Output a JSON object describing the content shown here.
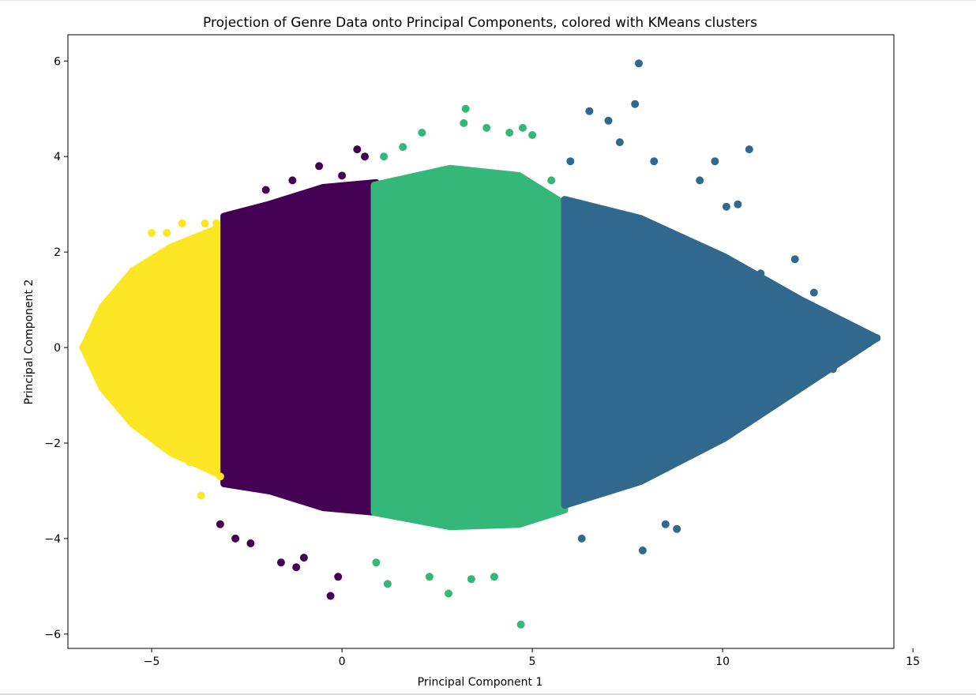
{
  "chart_data": {
    "type": "scatter",
    "title": "Projection of Genre Data onto Principal Components, colored with KMeans clusters",
    "xlabel": "Principal Component 1",
    "ylabel": "Principal Component 2",
    "xlim": [
      -7.2,
      14.5
    ],
    "ylim": [
      -6.3,
      6.55
    ],
    "x_ticks": [
      -5,
      0,
      5,
      10,
      15
    ],
    "x_tick_labels": [
      "−5",
      "0",
      "5",
      "10",
      "15"
    ],
    "y_ticks": [
      -6,
      -4,
      -2,
      0,
      2,
      4,
      6
    ],
    "y_tick_labels": [
      "−6",
      "−4",
      "−2",
      "0",
      "2",
      "4",
      "6"
    ],
    "grid": false,
    "legend": "none",
    "series": [
      {
        "cluster": 0,
        "color": "#fde725",
        "x_range": [
          -6.8,
          -3.1
        ],
        "y_range": [
          -3.1,
          2.6
        ],
        "points": [
          [
            -6.8,
            0.0
          ],
          [
            -6.4,
            0.6
          ],
          [
            -6.0,
            -0.9
          ],
          [
            -5.5,
            1.6
          ],
          [
            -5.2,
            -1.7
          ],
          [
            -5.0,
            2.4
          ],
          [
            -4.6,
            2.4
          ],
          [
            -4.5,
            -2.0
          ],
          [
            -4.2,
            2.6
          ],
          [
            -4.0,
            -2.4
          ],
          [
            -3.7,
            -3.1
          ],
          [
            -3.6,
            2.6
          ],
          [
            -3.3,
            2.6
          ],
          [
            -3.2,
            -2.7
          ]
        ]
      },
      {
        "cluster": 1,
        "color": "#440154",
        "x_range": [
          -3.1,
          0.9
        ],
        "y_range": [
          -5.2,
          4.15
        ],
        "points": [
          [
            -3.2,
            -3.7
          ],
          [
            -2.8,
            -4.0
          ],
          [
            -2.4,
            -4.1
          ],
          [
            -2.0,
            3.3
          ],
          [
            -1.6,
            -4.5
          ],
          [
            -1.3,
            3.5
          ],
          [
            -1.2,
            -4.6
          ],
          [
            -1.0,
            -4.4
          ],
          [
            -0.6,
            3.8
          ],
          [
            -0.3,
            -5.2
          ],
          [
            -0.1,
            -4.8
          ],
          [
            0.0,
            3.6
          ],
          [
            0.4,
            4.15
          ],
          [
            0.6,
            4.0
          ]
        ]
      },
      {
        "cluster": 2,
        "color": "#35b779",
        "x_range": [
          0.85,
          5.85
        ],
        "y_range": [
          -5.8,
          5.0
        ],
        "points": [
          [
            0.9,
            -4.5
          ],
          [
            1.1,
            4.0
          ],
          [
            1.2,
            -4.95
          ],
          [
            1.6,
            4.2
          ],
          [
            2.1,
            4.5
          ],
          [
            2.3,
            -4.8
          ],
          [
            2.8,
            -5.15
          ],
          [
            3.2,
            4.7
          ],
          [
            3.25,
            5.0
          ],
          [
            3.4,
            -4.85
          ],
          [
            3.8,
            4.6
          ],
          [
            4.0,
            -4.8
          ],
          [
            4.4,
            4.5
          ],
          [
            4.7,
            -5.8
          ],
          [
            4.75,
            4.6
          ],
          [
            5.0,
            4.45
          ],
          [
            5.5,
            3.5
          ]
        ]
      },
      {
        "cluster": 3,
        "color": "#31688e",
        "x_range": [
          5.85,
          14.05
        ],
        "y_range": [
          -4.25,
          5.95
        ],
        "points": [
          [
            6.0,
            3.9
          ],
          [
            6.3,
            -4.0
          ],
          [
            6.5,
            4.95
          ],
          [
            7.0,
            4.75
          ],
          [
            7.3,
            4.3
          ],
          [
            7.7,
            5.1
          ],
          [
            7.8,
            5.95
          ],
          [
            7.9,
            -4.25
          ],
          [
            8.2,
            3.9
          ],
          [
            8.5,
            -3.7
          ],
          [
            8.8,
            -3.8
          ],
          [
            9.4,
            3.5
          ],
          [
            9.8,
            3.9
          ],
          [
            10.1,
            2.95
          ],
          [
            10.4,
            3.0
          ],
          [
            10.7,
            4.15
          ],
          [
            11.0,
            1.55
          ],
          [
            11.3,
            1.3
          ],
          [
            11.9,
            1.85
          ],
          [
            12.4,
            1.15
          ],
          [
            12.9,
            -0.45
          ],
          [
            13.5,
            0.25
          ],
          [
            14.05,
            0.2
          ]
        ]
      }
    ]
  }
}
